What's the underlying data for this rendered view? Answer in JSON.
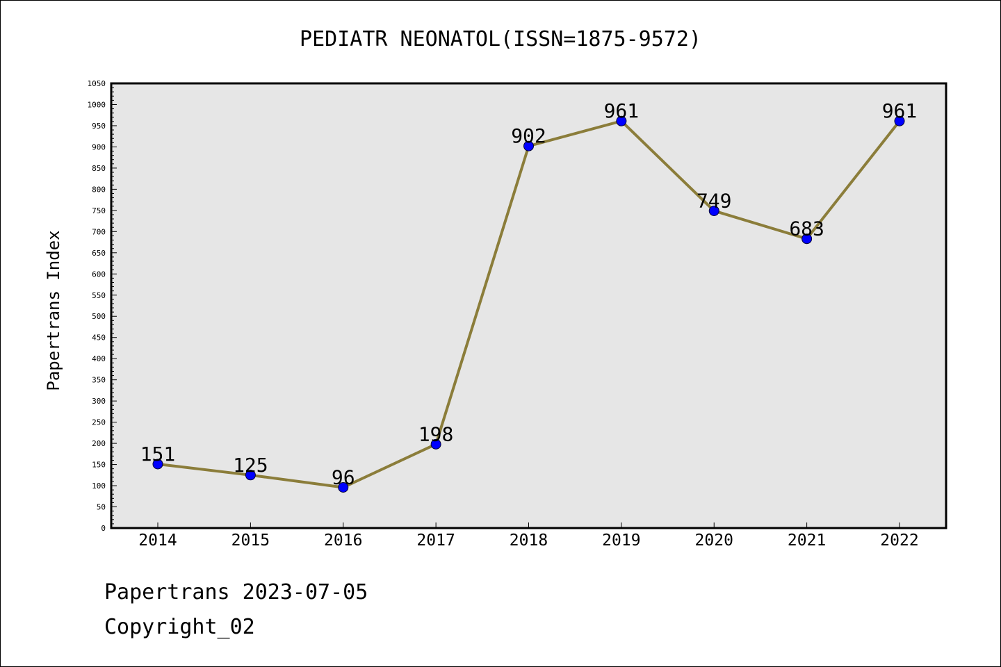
{
  "chart_data": {
    "type": "line",
    "title": "PEDIATR NEONATOL(ISSN=1875-9572)",
    "xlabel": "",
    "ylabel": "Papertrans Index",
    "categories": [
      "2014",
      "2015",
      "2016",
      "2017",
      "2018",
      "2019",
      "2020",
      "2021",
      "2022"
    ],
    "series": [
      {
        "values": [
          151,
          125,
          96,
          198,
          902,
          961,
          749,
          683,
          961
        ]
      }
    ],
    "data_labels": [
      "151",
      "125",
      "96",
      "198",
      "902",
      "961",
      "749",
      "683",
      "961"
    ],
    "ylim": [
      0,
      1050
    ],
    "yticks": [
      "0",
      "50",
      "100",
      "150",
      "200",
      "250",
      "300",
      "350",
      "400",
      "450",
      "500",
      "550",
      "600",
      "650",
      "700",
      "750",
      "800",
      "850",
      "900",
      "950",
      "1000",
      "1050"
    ],
    "grid": false,
    "legend": "none",
    "colors": {
      "line": "#8b7d3a",
      "marker": "#0000ff",
      "plot_bg": "#e6e6e6"
    }
  },
  "footer": {
    "line1": "Papertrans 2023-07-05",
    "line2": "Copyright_02"
  }
}
